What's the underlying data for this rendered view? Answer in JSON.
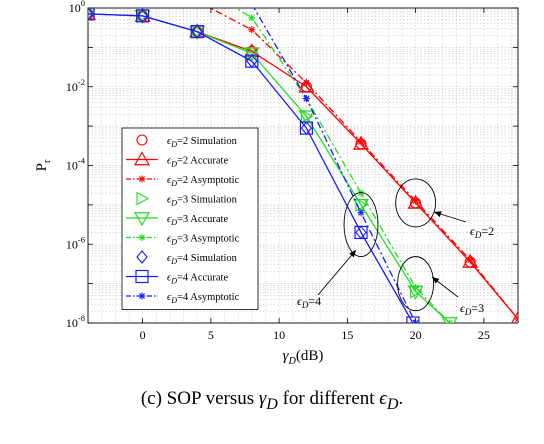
{
  "caption": {
    "prefix": "(c) SOP versus ",
    "var": "γ",
    "var_sub": "D",
    "middle": " for different ",
    "eps": "ϵ",
    "eps_sub": "D",
    "suffix": "."
  },
  "chart_data": {
    "type": "line",
    "xlabel": "γD(dB)",
    "ylabel": "Pr",
    "xlim": [
      -4,
      27.5
    ],
    "ylim_exponent": [
      -8,
      0
    ],
    "y_scale": "log",
    "grid": true,
    "x_ticks": [
      0,
      5,
      10,
      15,
      20,
      25
    ],
    "y_tick_labels": [
      "10^0",
      "10^-2",
      "10^-4",
      "10^-6",
      "10^-8"
    ],
    "legend_position": "center-left",
    "colors": {
      "eps2": "#ff0000",
      "eps3": "#22dd22",
      "eps4": "#1a1aff"
    },
    "series": [
      {
        "name": "ϵD=2 Simulation",
        "style": "circle-marker",
        "color": "#ff0000",
        "x": [
          -4,
          0,
          4,
          8,
          12,
          16,
          20,
          24
        ],
        "log10_y": [
          -0.15,
          -0.2,
          -0.6,
          -1.1,
          -2.0,
          -3.45,
          -4.95,
          -6.45
        ]
      },
      {
        "name": "ϵD=2 Accurate",
        "style": "solid-triangle-up",
        "color": "#ff0000",
        "x": [
          -4,
          0,
          4,
          8,
          12,
          16,
          20,
          24,
          27.5
        ],
        "log10_y": [
          -0.15,
          -0.2,
          -0.6,
          -1.1,
          -2.0,
          -3.45,
          -4.95,
          -6.45,
          -7.9
        ]
      },
      {
        "name": "ϵD=2 Asymptotic",
        "style": "dashdot-star",
        "color": "#ff0000",
        "x": [
          4.4,
          8,
          12,
          16,
          20,
          24,
          27.5
        ],
        "log10_y": [
          0.1,
          -0.55,
          -1.9,
          -3.4,
          -4.9,
          -6.4,
          -7.9
        ]
      },
      {
        "name": "ϵD=3 Simulation",
        "style": "triangle-right-marker",
        "color": "#22dd22",
        "x": [
          -4,
          0,
          4,
          8,
          12,
          16,
          20
        ],
        "log10_y": [
          -0.15,
          -0.2,
          -0.6,
          -1.15,
          -2.75,
          -5.0,
          -7.2
        ]
      },
      {
        "name": "ϵD=3 Accurate",
        "style": "solid-triangle-down",
        "color": "#22dd22",
        "x": [
          -4,
          0,
          4,
          8,
          12,
          16,
          20,
          22.5
        ],
        "log10_y": [
          -0.15,
          -0.2,
          -0.6,
          -1.15,
          -2.75,
          -5.0,
          -7.2,
          -8.0
        ]
      },
      {
        "name": "ϵD=3 Asymptotic",
        "style": "dashdot-star",
        "color": "#22dd22",
        "x": [
          6.4,
          8,
          12,
          16,
          20,
          22.5
        ],
        "log10_y": [
          0.1,
          -0.25,
          -2.3,
          -4.7,
          -7.1,
          -8.0
        ]
      },
      {
        "name": "ϵD=4 Simulation",
        "style": "diamond-marker",
        "color": "#1a1aff",
        "x": [
          -4,
          0,
          4,
          8,
          12,
          16
        ],
        "log10_y": [
          -0.15,
          -0.2,
          -0.6,
          -1.35,
          -3.05,
          -5.7
        ]
      },
      {
        "name": "ϵD=4 Accurate",
        "style": "solid-square",
        "color": "#1a1aff",
        "x": [
          -4,
          0,
          4,
          8,
          12,
          16,
          19.8
        ],
        "log10_y": [
          -0.15,
          -0.2,
          -0.6,
          -1.35,
          -3.05,
          -5.7,
          -8.0
        ]
      },
      {
        "name": "ϵD=4 Asymptotic",
        "style": "dashdot-star",
        "color": "#1a1aff",
        "x": [
          8,
          12,
          16,
          20
        ],
        "log10_y": [
          0.1,
          -2.3,
          -5.2,
          -8.0
        ]
      }
    ],
    "annotations": [
      {
        "label": "ϵD=2",
        "x": 20,
        "log10_y": -4.95
      },
      {
        "label": "ϵD=3",
        "x": 20,
        "log10_y": -7.0
      },
      {
        "label": "ϵD=4",
        "x": 16,
        "log10_y": -5.5
      }
    ]
  }
}
